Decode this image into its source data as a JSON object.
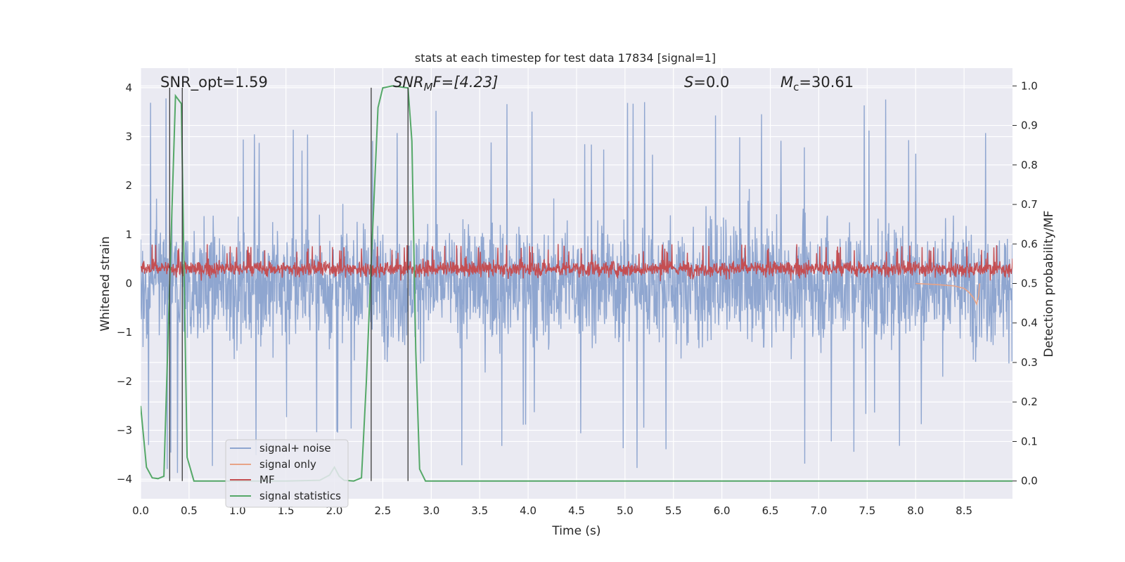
{
  "chart_data": {
    "type": "line",
    "title": "stats at each timestep for test data 17834 [signal=1]",
    "xlabel": "Time (s)",
    "ylabel_left": "Whitened strain",
    "ylabel_right": "Detection probability/MF",
    "xlim": [
      0.0,
      9.0
    ],
    "ylim_left": [
      -4.4,
      4.4
    ],
    "ylim_right": [
      -0.045,
      1.045
    ],
    "x_ticks": [
      "0.0",
      "0.5",
      "1.0",
      "1.5",
      "2.0",
      "2.5",
      "3.0",
      "3.5",
      "4.0",
      "4.5",
      "5.0",
      "5.5",
      "6.0",
      "6.5",
      "7.0",
      "7.5",
      "8.0",
      "8.5"
    ],
    "x_tick_values": [
      0.0,
      0.5,
      1.0,
      1.5,
      2.0,
      2.5,
      3.0,
      3.5,
      4.0,
      4.5,
      5.0,
      5.5,
      6.0,
      6.5,
      7.0,
      7.5,
      8.0,
      8.5
    ],
    "y_left_ticks": [
      "−4",
      "−3",
      "−2",
      "−1",
      "0",
      "1",
      "2",
      "3",
      "4"
    ],
    "y_left_tick_values": [
      -4,
      -3,
      -2,
      -1,
      0,
      1,
      2,
      3,
      4
    ],
    "y_right_ticks": [
      "0.0",
      "0.1",
      "0.2",
      "0.3",
      "0.4",
      "0.5",
      "0.6",
      "0.7",
      "0.8",
      "0.9",
      "1.0"
    ],
    "y_right_tick_values": [
      0.0,
      0.1,
      0.2,
      0.3,
      0.4,
      0.5,
      0.6,
      0.7,
      0.8,
      0.9,
      1.0
    ],
    "grid": true,
    "legend_position": "lower-left",
    "annotations": {
      "snr_opt": "SNR_opt=1.59",
      "snr_mf_base": "SNR",
      "snr_mf_sub": "M",
      "snr_mf_rest": "F=[4.23]",
      "s_var": "S",
      "s_rest": "=0.0",
      "mc_var": "M",
      "mc_sub": "c",
      "mc_rest": "=30.61"
    },
    "vertical_lines": [
      0.3,
      0.43,
      2.38,
      2.76
    ],
    "series": [
      {
        "name": "signal+ noise",
        "color": "#8fa6d0",
        "axis": "left",
        "note": "dense noise, amplitude about ±2 with spikes to ±3.9"
      },
      {
        "name": "signal only",
        "color": "#e8a487",
        "axis": "left",
        "x": [
          8.0,
          8.2,
          8.4,
          8.5,
          8.55,
          8.6,
          8.63,
          8.65,
          8.66
        ],
        "y": [
          0.0,
          -0.02,
          -0.05,
          -0.1,
          -0.18,
          -0.3,
          -0.42,
          -0.25,
          0.0
        ]
      },
      {
        "name": "MF",
        "color": "#c44e52",
        "axis": "right",
        "note": "band roughly 0.50 to 0.58, spikes to 0.60"
      },
      {
        "name": "signal statistics",
        "color": "#55a868",
        "axis": "right",
        "x": [
          0.0,
          0.06,
          0.12,
          0.18,
          0.24,
          0.3,
          0.36,
          0.42,
          0.48,
          0.55,
          0.8,
          1.0,
          1.5,
          1.85,
          1.95,
          2.0,
          2.05,
          2.1,
          2.2,
          2.28,
          2.33,
          2.38,
          2.45,
          2.5,
          2.6,
          2.76,
          2.8,
          2.84,
          2.88,
          2.94,
          3.0,
          3.5,
          9.0
        ],
        "y": [
          0.19,
          0.035,
          0.008,
          0.006,
          0.012,
          0.5,
          0.975,
          0.955,
          0.06,
          0.0,
          0.0,
          0.0,
          0.0,
          0.002,
          0.015,
          0.035,
          0.012,
          0.002,
          0.0,
          0.008,
          0.25,
          0.55,
          0.945,
          0.995,
          1.0,
          0.995,
          0.86,
          0.33,
          0.03,
          0.0,
          0.0,
          0.0,
          0.0
        ]
      }
    ]
  }
}
